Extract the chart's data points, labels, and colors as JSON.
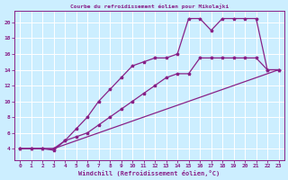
{
  "title": "Courbe du refroidissement éolien pour Mikolajki",
  "xlabel": "Windchill (Refroidissement éolien,°C)",
  "background_color": "#cceeff",
  "grid_color": "#ffffff",
  "line_color": "#882288",
  "xlim": [
    -0.5,
    23.5
  ],
  "ylim": [
    2.5,
    21.5
  ],
  "xticks": [
    0,
    1,
    2,
    3,
    4,
    5,
    6,
    7,
    8,
    9,
    10,
    11,
    12,
    13,
    14,
    15,
    16,
    17,
    18,
    19,
    20,
    21,
    22,
    23
  ],
  "yticks": [
    4,
    6,
    8,
    10,
    12,
    14,
    16,
    18,
    20
  ],
  "line_main_x": [
    0,
    1,
    2,
    3,
    4,
    5,
    6,
    7,
    8,
    9,
    10,
    11,
    12,
    13,
    14,
    15,
    16,
    17,
    18,
    19,
    20,
    21,
    22,
    23
  ],
  "line_main_y": [
    4,
    4,
    4,
    3.8,
    5,
    6.5,
    8,
    10,
    11.5,
    13,
    14.5,
    15,
    15.5,
    15.5,
    16,
    20.5,
    20.5,
    19,
    20.5,
    20.5,
    20.5,
    20.5,
    14,
    14
  ],
  "line_upper_x": [
    0,
    1,
    2,
    3,
    4,
    5,
    6,
    7,
    8,
    9,
    10,
    11,
    12,
    13,
    14,
    15,
    16,
    17,
    18,
    19,
    20,
    21,
    22,
    23
  ],
  "line_upper_y": [
    4,
    4,
    4,
    4,
    5,
    5.5,
    6,
    7,
    8,
    9,
    10,
    11,
    12,
    13,
    13.5,
    13.5,
    15.5,
    15.5,
    15.5,
    15.5,
    15.5,
    15.5,
    14,
    14
  ],
  "line_lower_x": [
    0,
    1,
    2,
    3,
    4,
    5,
    6,
    7,
    8,
    9,
    10,
    11,
    12,
    13,
    14,
    15,
    16,
    17,
    18,
    19,
    20,
    21,
    22,
    23
  ],
  "line_lower_y": [
    4,
    4,
    4,
    4,
    4.5,
    5,
    5.5,
    6,
    6.5,
    7,
    7.5,
    8,
    8.5,
    9,
    9.5,
    10,
    10.5,
    11,
    11.5,
    12,
    12.5,
    13,
    13.5,
    14
  ]
}
